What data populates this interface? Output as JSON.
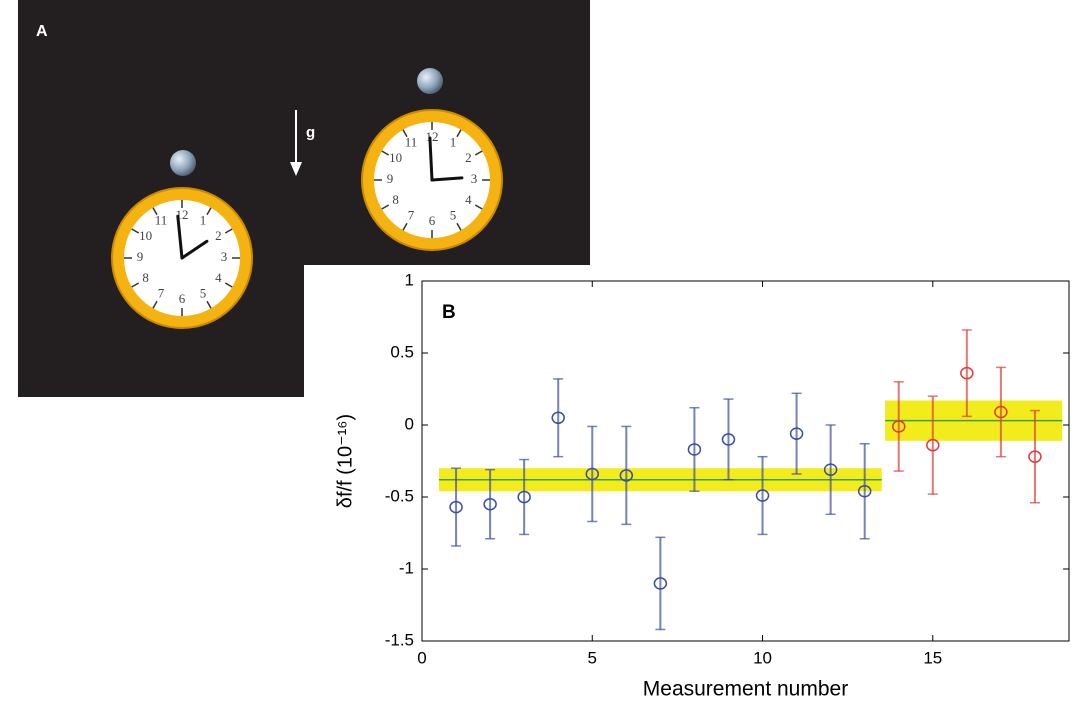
{
  "panel_a": {
    "label": "A",
    "gravity_label": "g",
    "clock_numerals": [
      "12",
      "1",
      "2",
      "3",
      "4",
      "5",
      "6",
      "7",
      "8",
      "9",
      "10",
      "11"
    ]
  },
  "chart_data": {
    "type": "errorbar_scatter",
    "panel_label": "B",
    "xlabel": "Measurement number",
    "ylabel": "δf/f (10⁻¹⁶)",
    "xlim": [
      0,
      19
    ],
    "xticks": [
      0,
      5,
      10,
      15
    ],
    "ylim": [
      -1.5,
      1
    ],
    "yticks": [
      -1.5,
      -1,
      -0.5,
      0,
      0.5,
      1
    ],
    "series": [
      {
        "color": "#3a4fa0",
        "x": [
          1,
          2,
          3,
          4,
          5,
          6,
          7,
          8,
          9,
          10,
          11,
          12,
          13
        ],
        "values": [
          -0.57,
          -0.55,
          -0.5,
          0.05,
          -0.34,
          -0.35,
          -1.1,
          -0.17,
          -0.1,
          -0.49,
          -0.06,
          -0.31,
          -0.46
        ],
        "errors": [
          0.27,
          0.24,
          0.26,
          0.27,
          0.33,
          0.34,
          0.32,
          0.29,
          0.28,
          0.27,
          0.28,
          0.31,
          0.33
        ]
      },
      {
        "color": "#e03a3a",
        "x": [
          14,
          15,
          16,
          17,
          18
        ],
        "values": [
          -0.01,
          -0.14,
          0.36,
          0.09,
          -0.22
        ],
        "errors": [
          0.31,
          0.34,
          0.3,
          0.31,
          0.32
        ]
      }
    ],
    "bands": [
      {
        "x": [
          0.5,
          13.5
        ],
        "mean": -0.38,
        "error": 0.08
      },
      {
        "x": [
          13.6,
          18.8
        ],
        "mean": 0.03,
        "error": 0.14
      }
    ],
    "band_color": "#f2ec1c",
    "mean_line_color": "#3aa04a"
  }
}
